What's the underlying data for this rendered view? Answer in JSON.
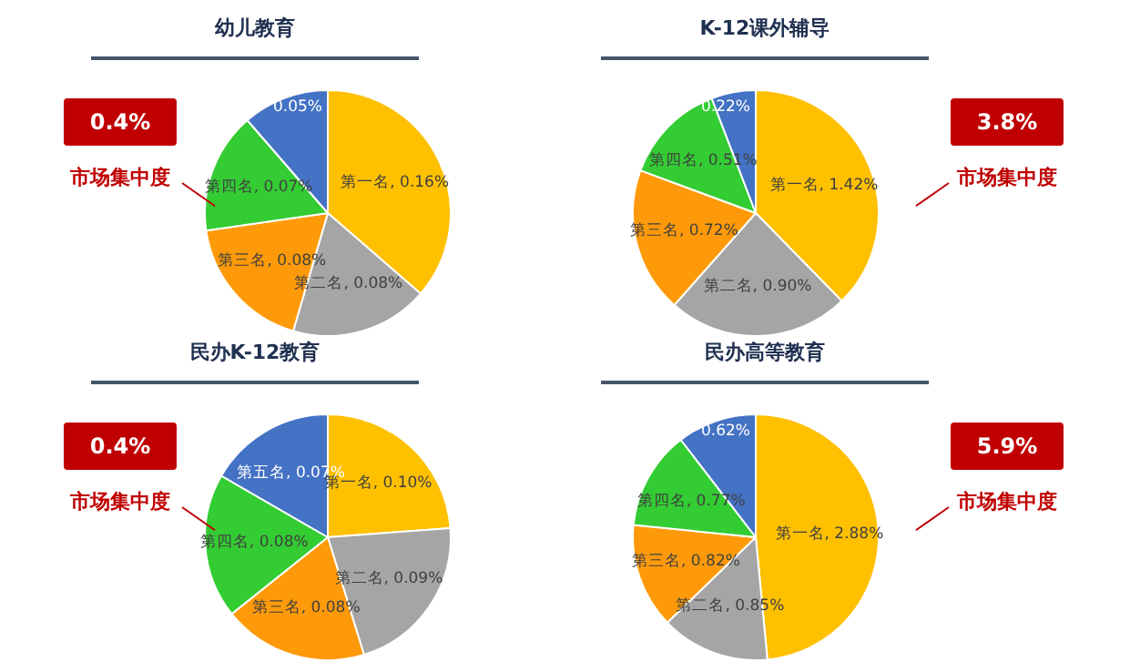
{
  "chart_data": [
    {
      "type": "pie",
      "title": "幼儿教育",
      "categories": [
        "第一名",
        "第二名",
        "第三名",
        "第四名",
        null
      ],
      "values": [
        0.16,
        0.08,
        0.08,
        0.07,
        0.05
      ],
      "value_labels": [
        "0.16%",
        "0.08%",
        "0.08%",
        "0.07%",
        "0.05%"
      ],
      "colors": [
        "#ffc000",
        "#a5a5a5",
        "#fe9a0a",
        "#33cc33",
        "#4472c4"
      ],
      "annotations": [
        "0.4%",
        "市场集中度"
      ]
    },
    {
      "type": "pie",
      "title": "K-12课外辅导",
      "categories": [
        "第一名",
        "第二名",
        "第三名",
        "第四名",
        null
      ],
      "values": [
        1.42,
        0.9,
        0.72,
        0.51,
        0.22
      ],
      "value_labels": [
        "1.42%",
        "0.90%",
        "0.72%",
        "0.51%",
        "0.22%"
      ],
      "colors": [
        "#ffc000",
        "#a5a5a5",
        "#fe9a0a",
        "#33cc33",
        "#4472c4"
      ],
      "annotations": [
        "3.8%",
        "市场集中度"
      ]
    },
    {
      "type": "pie",
      "title": "民办K-12教育",
      "categories": [
        "第一名",
        "第二名",
        "第三名",
        "第四名",
        "第五名"
      ],
      "values": [
        0.1,
        0.09,
        0.08,
        0.08,
        0.07
      ],
      "value_labels": [
        "0.10%",
        "0.09%",
        "0.08%",
        "0.08%",
        "0.07%"
      ],
      "colors": [
        "#ffc000",
        "#a5a5a5",
        "#fe9a0a",
        "#33cc33",
        "#4472c4"
      ],
      "annotations": [
        "0.4%",
        "市场集中度"
      ]
    },
    {
      "type": "pie",
      "title": "民办高等教育",
      "categories": [
        "第一名",
        "第二名",
        "第三名",
        "第四名",
        null
      ],
      "values": [
        2.88,
        0.85,
        0.82,
        0.77,
        0.62
      ],
      "value_labels": [
        "2.88%",
        "0.85%",
        "0.82%",
        "0.77%",
        "0.62%"
      ],
      "colors": [
        "#ffc000",
        "#a5a5a5",
        "#fe9a0a",
        "#33cc33",
        "#4472c4"
      ],
      "annotations": [
        "5.9%",
        "市场集中度"
      ]
    }
  ]
}
